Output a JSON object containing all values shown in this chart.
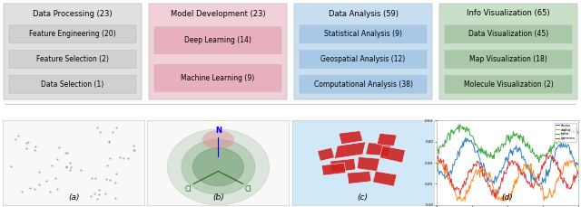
{
  "background_color": "#f0f0f0",
  "fig_width": 6.4,
  "fig_height": 2.29,
  "top_section": {
    "panels": [
      {
        "title": "Data Processing (23)",
        "bg_color": "#e0e0e0",
        "sub_color": "#d0d0d0",
        "sub_items": [
          "Feature Engineering (20)",
          "Feature Selection (2)",
          "Data Selection (1)"
        ]
      },
      {
        "title": "Model Development (23)",
        "bg_color": "#f2d0d8",
        "sub_color": "#e8b0bc",
        "sub_items": [
          "Deep Learning (14)",
          "Machine Learning (9)"
        ]
      },
      {
        "title": "Data Analysis (59)",
        "bg_color": "#c8dff2",
        "sub_color": "#a8c8e8",
        "sub_items": [
          "Statistical Analysis (9)",
          "Geospatial Analysis (12)",
          "Computational Analysis (38)"
        ]
      },
      {
        "title": "Info Visualization (65)",
        "bg_color": "#c8dfc8",
        "sub_color": "#a8c8a8",
        "sub_items": [
          "Data Visualization (45)",
          "Map Visualization (18)",
          "Molecule Visualization (2)"
        ]
      }
    ]
  },
  "bottom_labels": [
    "(a)",
    "(b)",
    "(c)",
    "(d)"
  ],
  "title_fontsize": 6.0,
  "sub_fontsize": 5.5
}
